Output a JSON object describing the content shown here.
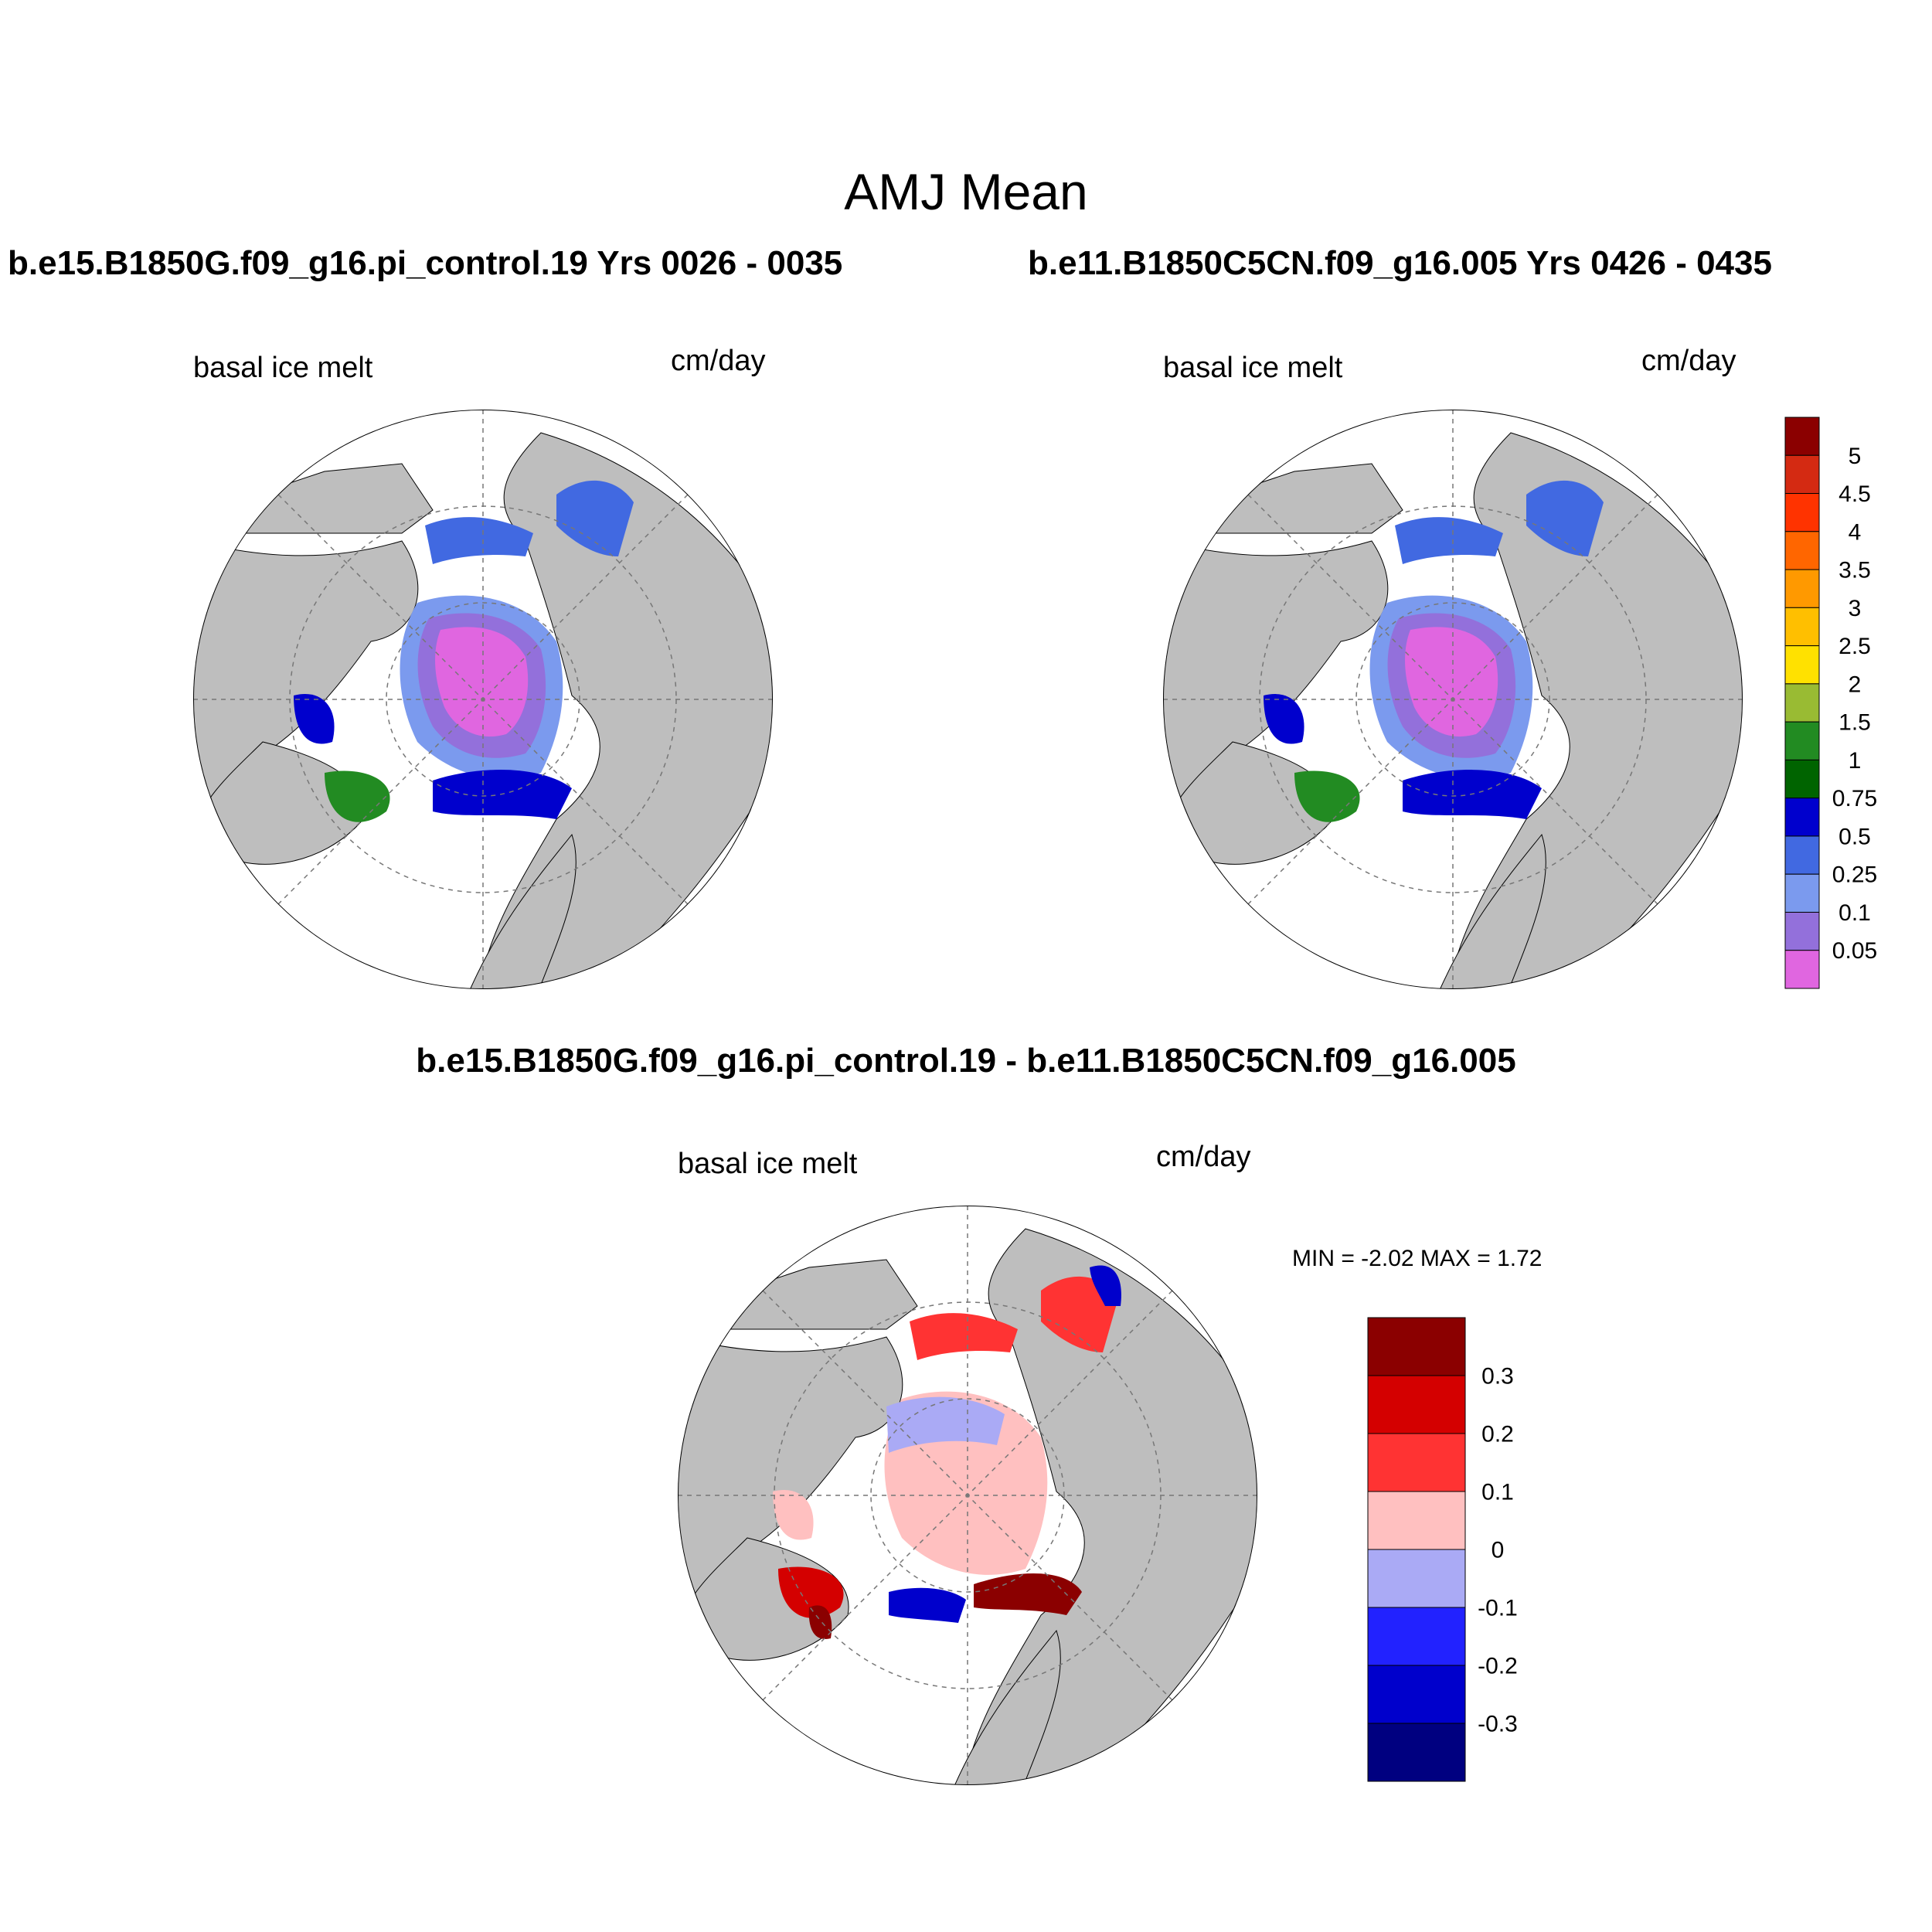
{
  "figure": {
    "title": "AMJ Mean",
    "colors": {
      "land": "#bebebe",
      "ocean": "#ffffff",
      "grid": "#777777",
      "coast": "#000000"
    }
  },
  "panels": [
    {
      "id": "case1",
      "title": "b.e15.B1850G.f09_g16.pi_control.19  Yrs 0026 - 0035",
      "variable": "basal ice melt",
      "units": "cm/day",
      "projection": "north-polar-stereographic"
    },
    {
      "id": "case2",
      "title": "b.e11.B1850C5CN.f09_g16.005  Yrs 0426 - 0435",
      "variable": "basal ice melt",
      "units": "cm/day",
      "projection": "north-polar-stereographic"
    },
    {
      "id": "diff",
      "title": "b.e15.B1850G.f09_g16.pi_control.19 - b.e11.B1850C5CN.f09_g16.005",
      "variable": "basal ice melt",
      "units": "cm/day",
      "projection": "north-polar-stereographic",
      "min_label": "MIN =  -2.02 MAX =   1.72",
      "min": -2.02,
      "max": 1.72
    }
  ],
  "colorbars": {
    "absolute": {
      "labels": [
        "5",
        "4.5",
        "4",
        "3.5",
        "3",
        "2.5",
        "2",
        "1.5",
        "1",
        "0.75",
        "0.5",
        "0.25",
        "0.1",
        "0.05"
      ],
      "colors": [
        "#8b0000",
        "#d42a12",
        "#ff3300",
        "#ff6600",
        "#ff9900",
        "#ffbf00",
        "#ffe100",
        "#99bb33",
        "#228b22",
        "#006400",
        "#0000cd",
        "#4169e1",
        "#7b9aee",
        "#9370db",
        "#e066e0"
      ]
    },
    "difference": {
      "labels": [
        "0.3",
        "0.2",
        "0.1",
        "0",
        "-0.1",
        "-0.2",
        "-0.3"
      ],
      "colors": [
        "#8b0000",
        "#d40000",
        "#ff3333",
        "#ffc0c0",
        "#aaaaf5",
        "#2222ff",
        "#0000cc",
        "#000080"
      ]
    }
  }
}
